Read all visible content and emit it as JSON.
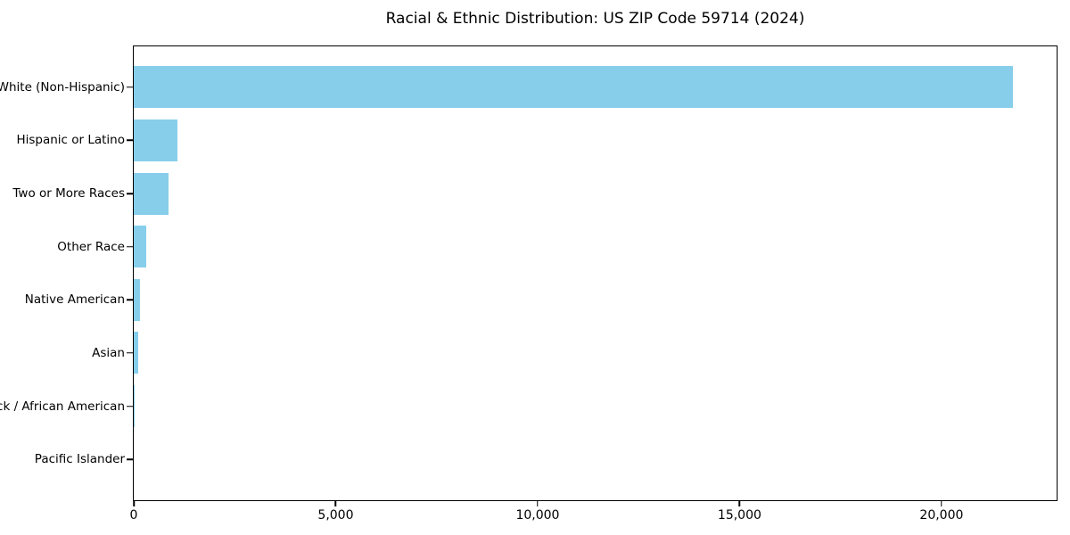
{
  "figure": {
    "background": "#ffffff",
    "border_color": "#000000"
  },
  "chart_data": {
    "type": "bar",
    "orientation": "horizontal",
    "title": "Racial & Ethnic Distribution: US ZIP Code 59714 (2024)",
    "categories": [
      "White (Non-Hispanic)",
      "Hispanic or Latino",
      "Two or More Races",
      "Other Race",
      "Native American",
      "Asian",
      "Black / African American",
      "Pacific Islander"
    ],
    "values": [
      21760,
      1090,
      855,
      300,
      155,
      110,
      25,
      0
    ],
    "bar_color": "#87CEEB",
    "xlabel": "",
    "ylabel": "",
    "xlim": [
      0,
      22850
    ],
    "xticks": [
      0,
      5000,
      10000,
      15000,
      20000
    ],
    "xtick_labels": [
      "0",
      "5,000",
      "10,000",
      "15,000",
      "20,000"
    ],
    "grid": false,
    "legend_position": "none"
  }
}
